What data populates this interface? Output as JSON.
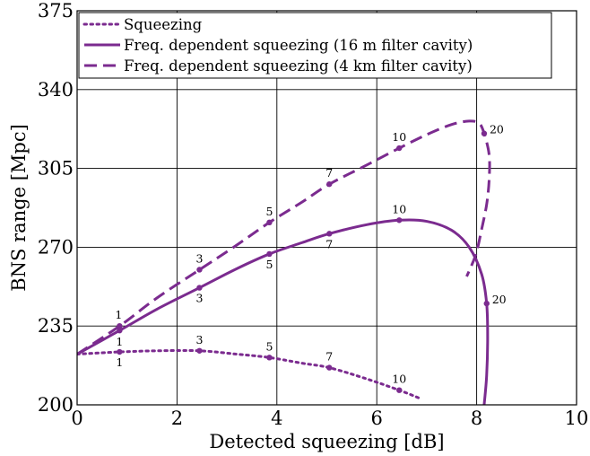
{
  "chart_data": {
    "type": "line",
    "title": "",
    "xlabel": "Detected squeezing [dB]",
    "ylabel": "BNS range [Mpc]",
    "xlim": [
      0,
      10
    ],
    "ylim": [
      200,
      375
    ],
    "xticks": [
      0,
      2,
      4,
      6,
      8,
      10
    ],
    "yticks": [
      200,
      235,
      270,
      305,
      340,
      375
    ],
    "grid": true,
    "legend_position": "top-left",
    "series_color": "#7b2b8f",
    "series": [
      {
        "name": "Squeezing",
        "style": "dotted",
        "points": [
          [
            0,
            222.5
          ],
          [
            0.85,
            223.5
          ],
          [
            1.6,
            224
          ],
          [
            2.45,
            224
          ],
          [
            3.2,
            222.5
          ],
          [
            3.85,
            221
          ],
          [
            4.5,
            218.5
          ],
          [
            5.05,
            216.5
          ],
          [
            5.8,
            211.5
          ],
          [
            6.45,
            206.5
          ],
          [
            6.85,
            203
          ]
        ],
        "markers": [
          {
            "x": 0.85,
            "y": 223.5,
            "label": "1"
          },
          {
            "x": 2.45,
            "y": 224,
            "label": "3"
          },
          {
            "x": 3.85,
            "y": 221,
            "label": "5"
          },
          {
            "x": 5.05,
            "y": 216.5,
            "label": "7"
          },
          {
            "x": 6.45,
            "y": 206.5,
            "label": "10"
          }
        ]
      },
      {
        "name": "Freq. dependent squeezing (16 m filter cavity)",
        "style": "solid",
        "points": [
          [
            0,
            222.5
          ],
          [
            0.85,
            233
          ],
          [
            1.6,
            242.5
          ],
          [
            2.45,
            252
          ],
          [
            3.2,
            260.5
          ],
          [
            3.85,
            267
          ],
          [
            4.5,
            272
          ],
          [
            5.05,
            276
          ],
          [
            5.8,
            280
          ],
          [
            6.45,
            282
          ],
          [
            7.0,
            281.5
          ],
          [
            7.5,
            277.5
          ],
          [
            7.85,
            270
          ],
          [
            8.1,
            258
          ],
          [
            8.2,
            245
          ],
          [
            8.22,
            230
          ],
          [
            8.2,
            213
          ],
          [
            8.15,
            200
          ]
        ],
        "markers": [
          {
            "x": 0.85,
            "y": 233,
            "label": "1"
          },
          {
            "x": 2.45,
            "y": 252,
            "label": "3"
          },
          {
            "x": 3.85,
            "y": 267,
            "label": "5"
          },
          {
            "x": 5.05,
            "y": 276,
            "label": "7"
          },
          {
            "x": 6.45,
            "y": 282,
            "label": "10"
          },
          {
            "x": 8.2,
            "y": 245,
            "label": "20"
          }
        ]
      },
      {
        "name": "Freq. dependent squeezing (4 km filter cavity)",
        "style": "dashed",
        "points": [
          [
            0,
            222.5
          ],
          [
            0.85,
            235
          ],
          [
            1.6,
            247.5
          ],
          [
            2.45,
            260
          ],
          [
            3.2,
            271
          ],
          [
            3.85,
            281
          ],
          [
            4.5,
            290
          ],
          [
            5.05,
            298
          ],
          [
            5.8,
            306.5
          ],
          [
            6.45,
            314
          ],
          [
            7.0,
            320
          ],
          [
            7.5,
            324.5
          ],
          [
            7.85,
            326
          ],
          [
            8.05,
            325
          ],
          [
            8.15,
            320.5
          ],
          [
            8.25,
            311
          ],
          [
            8.25,
            300
          ],
          [
            8.2,
            289
          ],
          [
            8.1,
            278
          ],
          [
            8.0,
            268
          ],
          [
            7.9,
            262
          ],
          [
            7.8,
            257
          ]
        ],
        "markers": [
          {
            "x": 0.85,
            "y": 235,
            "label": "1"
          },
          {
            "x": 2.45,
            "y": 260,
            "label": "3"
          },
          {
            "x": 3.85,
            "y": 281,
            "label": "5"
          },
          {
            "x": 5.05,
            "y": 298,
            "label": "7"
          },
          {
            "x": 6.45,
            "y": 314,
            "label": "10"
          },
          {
            "x": 8.15,
            "y": 320.5,
            "label": "20"
          }
        ]
      }
    ]
  }
}
